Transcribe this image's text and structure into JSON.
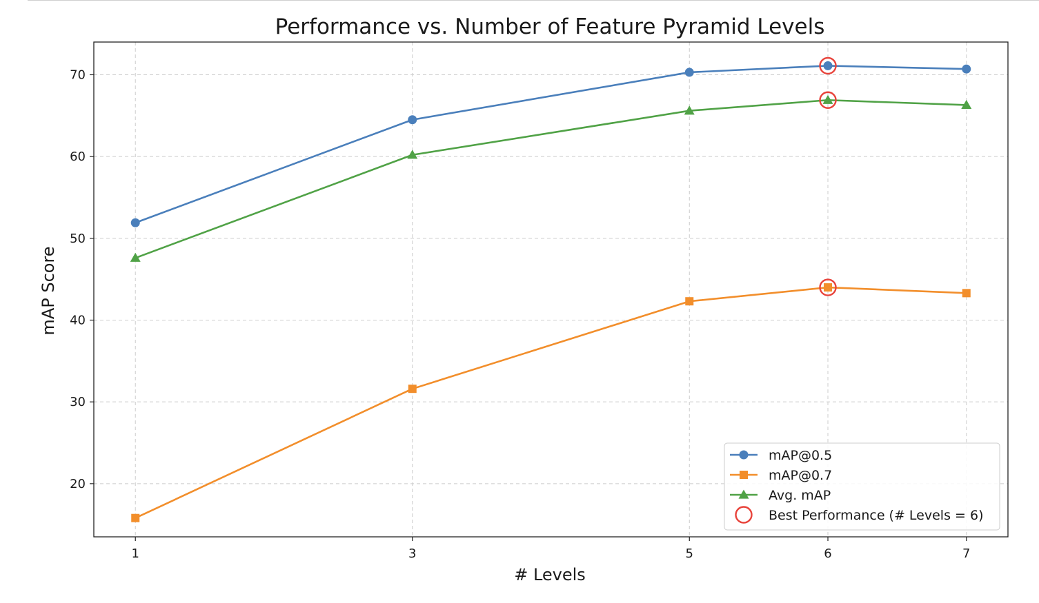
{
  "chart_data": {
    "type": "line",
    "title": "Performance vs. Number of Feature Pyramid Levels",
    "xlabel": "# Levels",
    "ylabel": "mAP Score",
    "x": [
      1,
      3,
      5,
      6,
      7
    ],
    "xticks": [
      "1",
      "3",
      "5",
      "6",
      "7"
    ],
    "yticks": [
      "20",
      "30",
      "40",
      "50",
      "60",
      "70"
    ],
    "xlim": [
      0.7,
      7.3
    ],
    "ylim": [
      13.5,
      74
    ],
    "grid": true,
    "legend_position": "bottom-right",
    "series": [
      {
        "name": "mAP@0.5",
        "values": [
          51.9,
          64.5,
          70.3,
          71.1,
          70.7
        ],
        "color": "#4a7fbb",
        "marker": "circle"
      },
      {
        "name": "mAP@0.7",
        "values": [
          15.8,
          31.6,
          42.3,
          44.0,
          43.3
        ],
        "color": "#f28e2b",
        "marker": "square"
      },
      {
        "name": "Avg. mAP",
        "values": [
          47.6,
          60.2,
          65.6,
          66.9,
          66.3
        ],
        "color": "#50a246",
        "marker": "triangle"
      }
    ],
    "highlight": {
      "name": "Best Performance (# Levels = 6)",
      "x": 6,
      "color": "#e8433b"
    }
  }
}
